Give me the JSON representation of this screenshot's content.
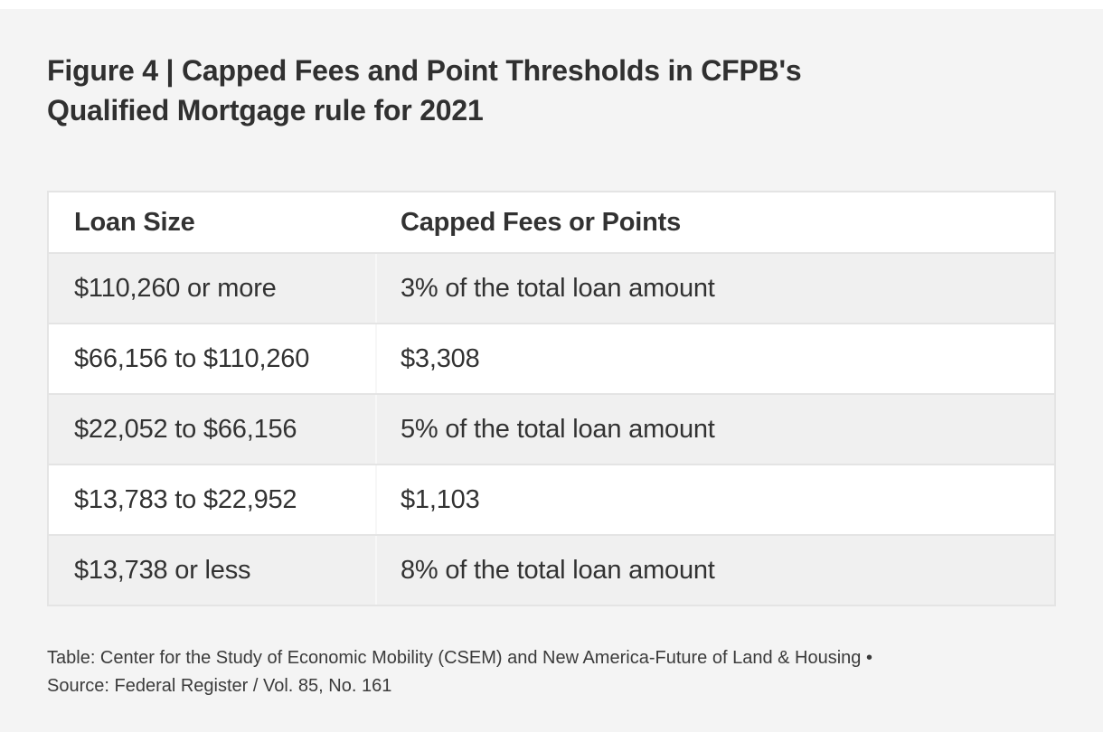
{
  "chart_data": {
    "type": "table",
    "title": "Figure 4 | Capped Fees and Point Thresholds in CFPB's Qualified Mortgage rule for 2021",
    "title_lines": [
      "Figure 4 | Capped Fees and Point Thresholds in CFPB's",
      "Qualified Mortgage rule for 2021"
    ],
    "columns": [
      "Loan Size",
      "Capped Fees or Points"
    ],
    "rows": [
      [
        "$110,260 or more",
        "3% of the total loan amount"
      ],
      [
        "$66,156 to $110,260",
        "$3,308"
      ],
      [
        "$22,052 to $66,156",
        "5% of the total loan amount"
      ],
      [
        "$13,783 to $22,952",
        "$1,103"
      ],
      [
        "$13,738 or less",
        "8% of the total loan amount"
      ]
    ],
    "footer_lines": [
      "Table: Center for the Study of Economic Mobility (CSEM) and New America-Future of Land & Housing •",
      "Source: Federal Register / Vol. 85, No. 161"
    ],
    "credit": "Center for the Study of Economic Mobility (CSEM) and New America-Future of Land & Housing",
    "source": "Federal Register / Vol. 85, No. 161"
  },
  "colors": {
    "page_background": "#f4f4f4",
    "row_alt_background": "#f0f0f0",
    "table_border": "#e4e4e4",
    "column_divider": "#f7f7f7",
    "text": "#323232"
  }
}
